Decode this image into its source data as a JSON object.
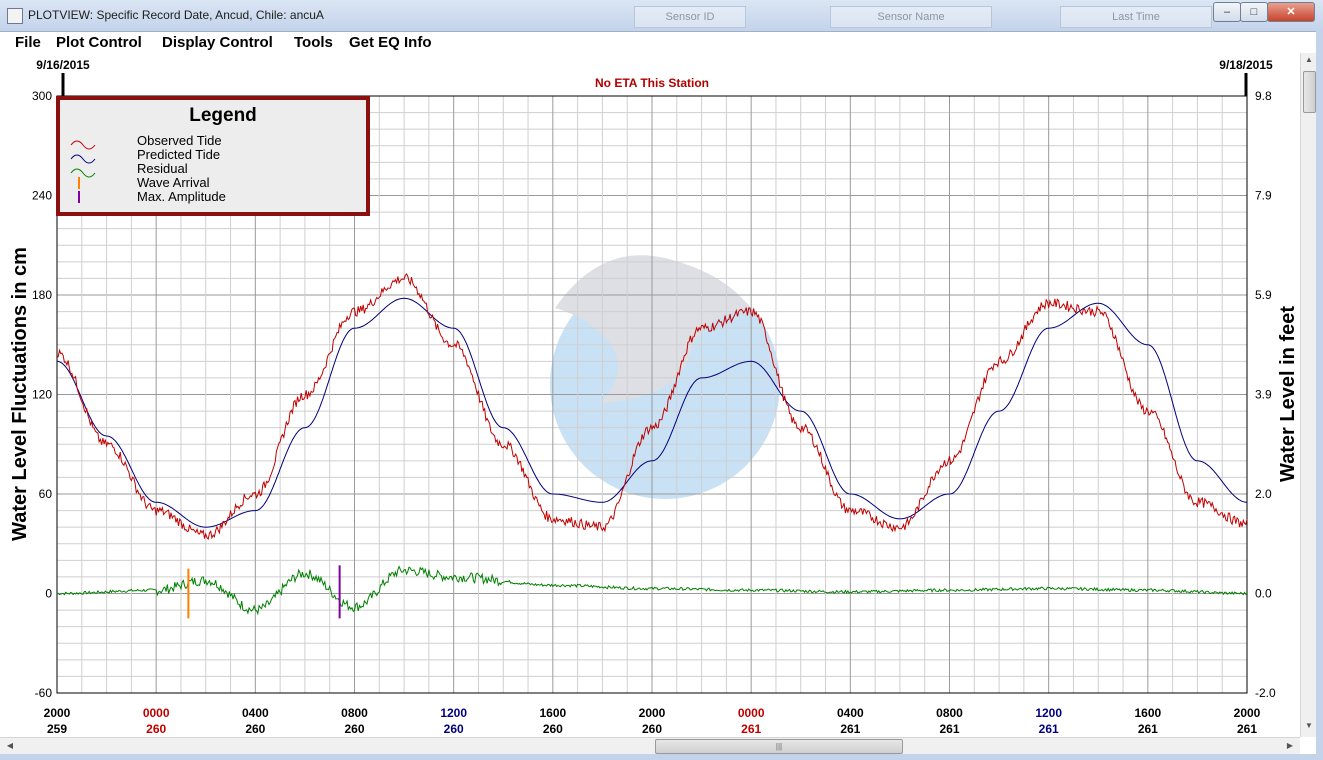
{
  "window": {
    "title": "PLOTVIEW: Specific Record Date, Ancud, Chile: ancuA",
    "background_columns": [
      "Sensor ID",
      "Sensor Name",
      "Last Time"
    ],
    "buttons": {
      "minimize": "–",
      "maximize": "□",
      "close": "✕"
    }
  },
  "menu": [
    "File",
    "Plot Control",
    "Display Control",
    "Tools",
    "Get EQ Info"
  ],
  "colors": {
    "observed": "#c00000",
    "predicted": "#00007f",
    "residual": "#008000",
    "wave_arrival": "#ff8000",
    "max_amplitude": "#8000a0",
    "legend_border": "#8b1010",
    "eta_text": "#b00000",
    "tick_red": "#c00000",
    "tick_blue": "#00007f",
    "logo_blue": "#9ec9ec",
    "logo_gray": "#c4c4d0"
  },
  "chart_data": {
    "type": "line",
    "date_left": "9/16/2015",
    "date_right": "9/18/2015",
    "annotation": "No ETA This Station",
    "ylabel": "Water Level Fluctuations in cm",
    "ylabel_right": "Water Level in feet",
    "ylim": [
      -60,
      300
    ],
    "yticks": [
      -60,
      0,
      60,
      120,
      180,
      240,
      300
    ],
    "yticks_right": [
      "-2.0",
      "0.0",
      "2.0",
      "3.9",
      "5.9",
      "7.9",
      "9.8"
    ],
    "x_range_hours": [
      0,
      48
    ],
    "xticks": [
      {
        "hour": "2000",
        "day": "259",
        "color": "black"
      },
      {
        "hour": "0000",
        "day": "260",
        "color": "red"
      },
      {
        "hour": "0400",
        "day": "260",
        "color": "black"
      },
      {
        "hour": "0800",
        "day": "260",
        "color": "black"
      },
      {
        "hour": "1200",
        "day": "260",
        "color": "blue"
      },
      {
        "hour": "1600",
        "day": "260",
        "color": "black"
      },
      {
        "hour": "2000",
        "day": "260",
        "color": "black"
      },
      {
        "hour": "0000",
        "day": "261",
        "color": "red"
      },
      {
        "hour": "0400",
        "day": "261",
        "color": "black"
      },
      {
        "hour": "0800",
        "day": "261",
        "color": "black"
      },
      {
        "hour": "1200",
        "day": "261",
        "color": "blue"
      },
      {
        "hour": "1600",
        "day": "261",
        "color": "black"
      },
      {
        "hour": "2000",
        "day": "261",
        "color": "black"
      }
    ],
    "legend": {
      "title": "Legend",
      "entries": [
        "Observed Tide",
        "Predicted Tide",
        "Residual",
        "Wave Arrival",
        "Max. Amplitude"
      ],
      "position": "top-left"
    },
    "series": [
      {
        "name": "Predicted Tide",
        "x": [
          0,
          2,
          4,
          6,
          8,
          10,
          12,
          14,
          16,
          18,
          20,
          22,
          24,
          26,
          28,
          30,
          32,
          34,
          36,
          38,
          40,
          42,
          44,
          46,
          48
        ],
        "y": [
          140,
          95,
          55,
          40,
          50,
          100,
          160,
          178,
          160,
          100,
          60,
          55,
          80,
          130,
          140,
          110,
          60,
          45,
          60,
          110,
          160,
          175,
          150,
          80,
          55
        ]
      },
      {
        "name": "Observed Tide",
        "x": [
          0,
          2,
          4,
          6,
          8,
          10,
          12,
          14,
          16,
          18,
          20,
          22,
          24,
          26,
          28,
          30,
          32,
          34,
          36,
          38,
          40,
          42,
          44,
          46,
          48
        ],
        "y": [
          145,
          90,
          50,
          35,
          60,
          120,
          170,
          190,
          150,
          90,
          45,
          40,
          100,
          160,
          170,
          100,
          50,
          40,
          80,
          140,
          175,
          170,
          110,
          55,
          42
        ]
      },
      {
        "name": "Residual",
        "x": [
          0,
          4,
          6,
          8,
          10,
          12,
          14,
          16,
          20,
          24,
          28,
          32,
          36,
          40,
          44,
          48
        ],
        "y": [
          0,
          2,
          8,
          -10,
          12,
          -8,
          14,
          10,
          5,
          3,
          2,
          1,
          2,
          3,
          2,
          0
        ]
      }
    ],
    "markers": [
      {
        "name": "Wave Arrival",
        "x": 5.3,
        "y_low": -15,
        "y_high": 15
      },
      {
        "name": "Max. Amplitude",
        "x": 11.4,
        "y_low": -15,
        "y_high": 17
      }
    ]
  }
}
